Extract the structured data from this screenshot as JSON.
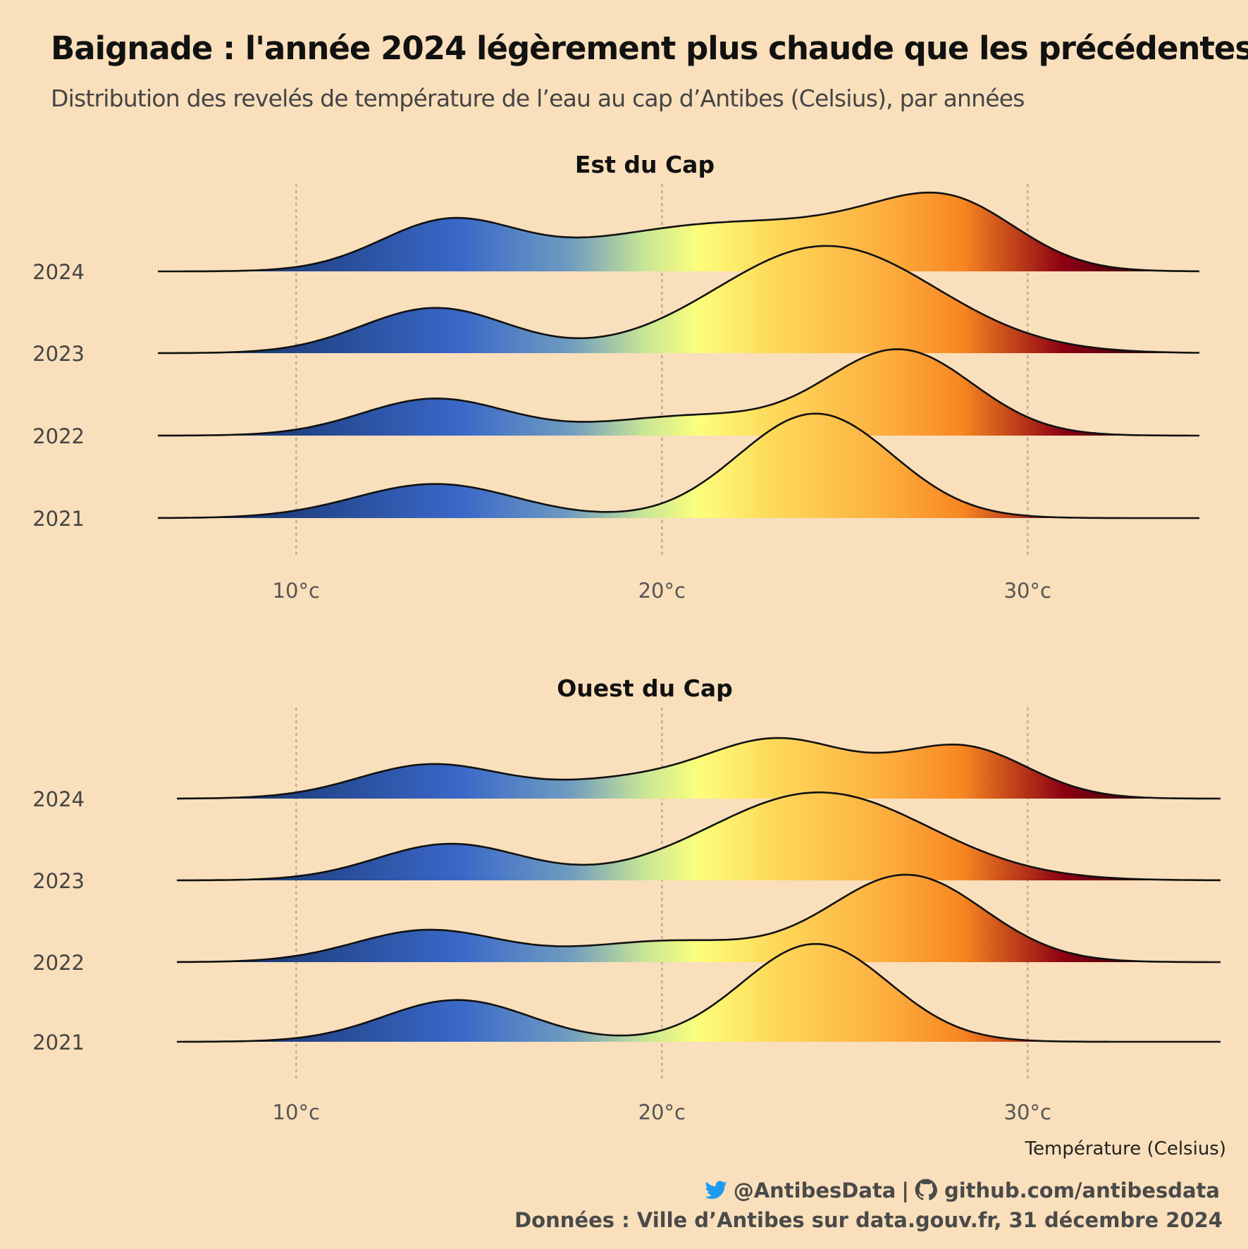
{
  "header": {
    "title": "Baignade : l'année 2024 légèrement plus chaude que les précédentes",
    "subtitle": "Distribution des revelés de température de l’eau au cap d’Antibes (Celsius), par années"
  },
  "footer": {
    "twitter_handle": "@AntibesData",
    "separator": "|",
    "github_url": "github.com/antibesdata",
    "source": "Données : Ville d’Antibes sur data.gouv.fr, 31 décembre 2024"
  },
  "colors": {
    "background": "#f9dfbb",
    "cold": "#1f3f7f",
    "blue": "#3a68c8",
    "pale_yellow": "#fcff7c",
    "yellow": "#fed95a",
    "orange": "#f88722",
    "dark_red": "#8b0012",
    "twitter": "#1d9bf0"
  },
  "icons": {
    "twitter": "twitter-bird-icon",
    "github": "github-icon"
  },
  "chart_data": [
    {
      "type": "ridgeline",
      "title": "Est du Cap",
      "xlabel": "",
      "x_ticks": [
        10,
        20,
        30
      ],
      "x_tick_labels": [
        "10°c",
        "20°c",
        "30°c"
      ],
      "xlim": [
        6.2,
        34.7
      ],
      "grid": "dotted vertical",
      "series": [
        {
          "name": "2024",
          "components": [
            {
              "mean": 14.2,
              "sd": 1.9,
              "w": 0.92
            },
            {
              "mean": 19.5,
              "sd": 2.4,
              "w": 0.55
            },
            {
              "mean": 23.0,
              "sd": 2.2,
              "w": 0.6
            },
            {
              "mean": 27.8,
              "sd": 1.9,
              "w": 1.28
            },
            {
              "mean": 25.2,
              "sd": 1.6,
              "w": 0.25
            }
          ]
        },
        {
          "name": "2023",
          "components": [
            {
              "mean": 13.8,
              "sd": 2.0,
              "w": 0.82
            },
            {
              "mean": 24.5,
              "sd": 3.0,
              "w": 1.95
            }
          ]
        },
        {
          "name": "2022",
          "components": [
            {
              "mean": 13.8,
              "sd": 2.0,
              "w": 0.67
            },
            {
              "mean": 20.8,
              "sd": 2.4,
              "w": 0.35
            },
            {
              "mean": 26.5,
              "sd": 2.0,
              "w": 1.55
            }
          ]
        },
        {
          "name": "2021",
          "components": [
            {
              "mean": 13.8,
              "sd": 2.2,
              "w": 0.62
            },
            {
              "mean": 24.2,
              "sd": 2.1,
              "w": 1.9
            }
          ]
        }
      ]
    },
    {
      "type": "ridgeline",
      "title": "Ouest du Cap",
      "xlabel": "Température (Celsius)",
      "x_ticks": [
        10,
        20,
        30
      ],
      "x_tick_labels": [
        "10°c",
        "20°c",
        "30°c"
      ],
      "xlim": [
        6.7,
        35.3
      ],
      "grid": "dotted vertical",
      "series": [
        {
          "name": "2024",
          "components": [
            {
              "mean": 13.7,
              "sd": 2.0,
              "w": 0.62
            },
            {
              "mean": 23.2,
              "sd": 2.0,
              "w": 1.05
            },
            {
              "mean": 28.2,
              "sd": 1.8,
              "w": 0.93
            },
            {
              "mean": 19.0,
              "sd": 2.0,
              "w": 0.3
            }
          ]
        },
        {
          "name": "2023",
          "components": [
            {
              "mean": 14.2,
              "sd": 2.0,
              "w": 0.66
            },
            {
              "mean": 24.3,
              "sd": 3.0,
              "w": 1.6
            }
          ]
        },
        {
          "name": "2022",
          "components": [
            {
              "mean": 13.6,
              "sd": 2.0,
              "w": 0.58
            },
            {
              "mean": 20.2,
              "sd": 2.4,
              "w": 0.38
            },
            {
              "mean": 26.7,
              "sd": 2.1,
              "w": 1.58
            }
          ]
        },
        {
          "name": "2021",
          "components": [
            {
              "mean": 14.4,
              "sd": 2.0,
              "w": 0.76
            },
            {
              "mean": 24.2,
              "sd": 2.0,
              "w": 1.78
            }
          ]
        }
      ]
    }
  ]
}
